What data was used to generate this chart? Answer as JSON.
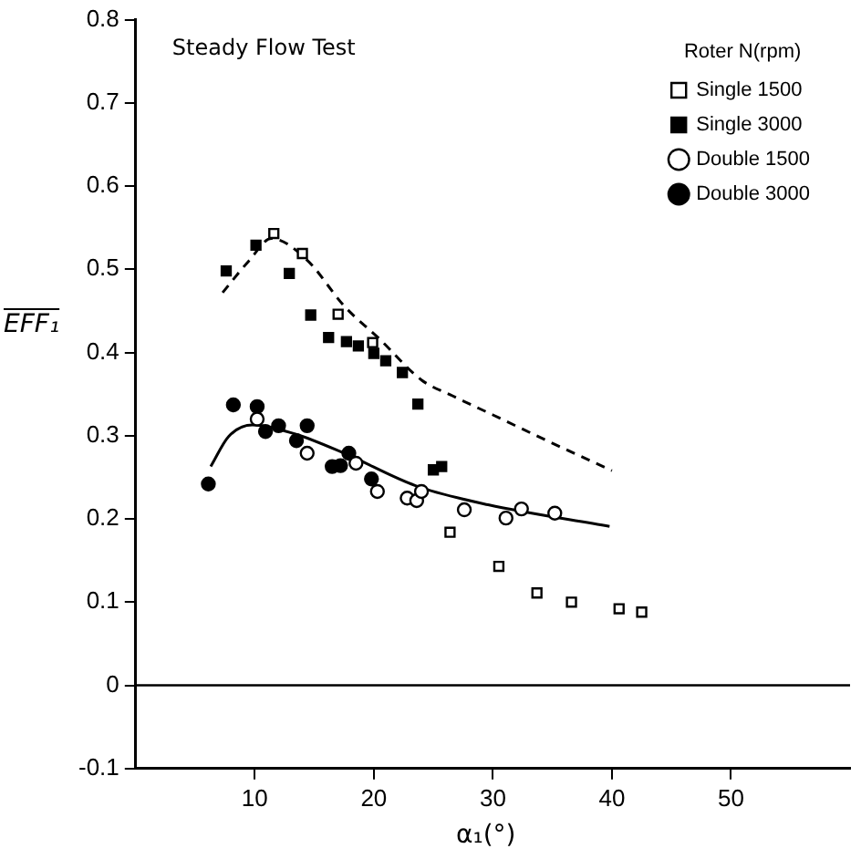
{
  "chart_data": {
    "type": "scatter",
    "title": "Steady Flow Test",
    "xlabel": "α₁(°)",
    "ylabel": "EFF₁",
    "legend_title": "Roter N(rpm)",
    "xlim": [
      0,
      60
    ],
    "xticks": [
      10,
      20,
      30,
      40,
      50
    ],
    "ylim": [
      -0.1,
      0.8
    ],
    "yticks": [
      -0.1,
      0,
      0.1,
      0.2,
      0.3,
      0.4,
      0.5,
      0.6,
      0.7,
      0.8
    ],
    "grid": false,
    "legend": "top right",
    "ref_lines": [
      {
        "axis": "y",
        "value": 0,
        "color": "#000000"
      }
    ],
    "series": [
      {
        "name": "Single 1500",
        "marker": "square",
        "color": "#ffffff",
        "x": [
          11.6,
          14.0,
          17.0,
          19.9,
          26.4,
          30.5,
          33.7,
          36.6,
          40.6,
          42.5
        ],
        "values": [
          0.543,
          0.519,
          0.446,
          0.412,
          0.184,
          0.143,
          0.111,
          0.1,
          0.092,
          0.088
        ]
      },
      {
        "name": "Single 3000",
        "marker": "square",
        "color": "#000000",
        "x": [
          7.6,
          10.1,
          12.9,
          14.7,
          16.2,
          17.7,
          18.7,
          20.0,
          21.0,
          22.4,
          23.7,
          25.0,
          25.7
        ],
        "values": [
          0.498,
          0.529,
          0.495,
          0.445,
          0.418,
          0.413,
          0.408,
          0.399,
          0.39,
          0.376,
          0.338,
          0.259,
          0.263
        ]
      },
      {
        "name": "Double 1500",
        "marker": "circle",
        "color": "#ffffff",
        "x": [
          10.2,
          14.4,
          18.5,
          20.3,
          22.8,
          23.6,
          24.0,
          27.6,
          31.1,
          32.4,
          35.2
        ],
        "values": [
          0.32,
          0.279,
          0.267,
          0.233,
          0.225,
          0.222,
          0.233,
          0.211,
          0.201,
          0.212,
          0.207
        ]
      },
      {
        "name": "Double 3000",
        "marker": "circle",
        "color": "#000000",
        "x": [
          6.1,
          8.2,
          10.2,
          10.9,
          12.0,
          13.5,
          14.4,
          16.5,
          17.2,
          17.9,
          19.8
        ],
        "values": [
          0.242,
          0.337,
          0.335,
          0.305,
          0.312,
          0.294,
          0.312,
          0.263,
          0.264,
          0.279,
          0.248
        ]
      },
      {
        "type": "line",
        "marker": "none",
        "line_style": "dashed",
        "color": "#000000",
        "x": [
          7.3,
          9.5,
          11.4,
          14.4,
          17.5,
          20.5,
          24.0,
          26.6,
          30.0,
          34.7,
          40.0
        ],
        "values": [
          0.472,
          0.51,
          0.537,
          0.511,
          0.456,
          0.416,
          0.367,
          0.348,
          0.325,
          0.293,
          0.258
        ]
      },
      {
        "type": "line",
        "marker": "none",
        "line_style": "solid",
        "color": "#000000",
        "x": [
          6.3,
          7.8,
          9.8,
          13.4,
          17.5,
          23.5,
          29.6,
          39.8
        ],
        "values": [
          0.263,
          0.299,
          0.313,
          0.302,
          0.279,
          0.24,
          0.217,
          0.191
        ]
      }
    ]
  }
}
